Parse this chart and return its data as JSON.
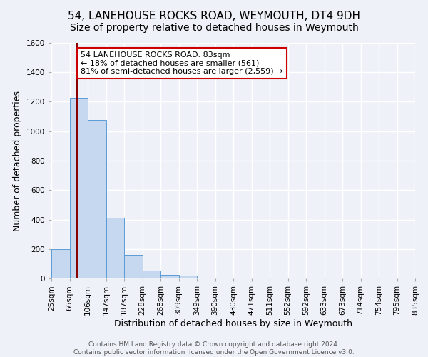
{
  "title": "54, LANEHOUSE ROCKS ROAD, WEYMOUTH, DT4 9DH",
  "subtitle": "Size of property relative to detached houses in Weymouth",
  "xlabel": "Distribution of detached houses by size in Weymouth",
  "ylabel": "Number of detached properties",
  "bin_labels": [
    "25sqm",
    "66sqm",
    "106sqm",
    "147sqm",
    "187sqm",
    "228sqm",
    "268sqm",
    "309sqm",
    "349sqm",
    "390sqm",
    "430sqm",
    "471sqm",
    "511sqm",
    "552sqm",
    "592sqm",
    "633sqm",
    "673sqm",
    "714sqm",
    "754sqm",
    "795sqm",
    "835sqm"
  ],
  "bar_values": [
    200,
    1225,
    1075,
    410,
    160,
    55,
    25,
    20,
    0,
    0,
    0,
    0,
    0,
    0,
    0,
    0,
    0,
    0,
    0,
    0
  ],
  "bar_color": "#c5d8f0",
  "bar_edge_color": "#5b9bd5",
  "property_size": 83,
  "vline_color": "#8b0000",
  "vline_x": 1.425,
  "annotation_text": "54 LANEHOUSE ROCKS ROAD: 83sqm\n← 18% of detached houses are smaller (561)\n81% of semi-detached houses are larger (2,559) →",
  "annotation_box_color": "#ffffff",
  "annotation_box_edge": "#cc0000",
  "ylim": [
    0,
    1600
  ],
  "yticks": [
    0,
    200,
    400,
    600,
    800,
    1000,
    1200,
    1400,
    1600
  ],
  "footer1": "Contains HM Land Registry data © Crown copyright and database right 2024.",
  "footer2": "Contains public sector information licensed under the Open Government Licence v3.0.",
  "background_color": "#eef2f8",
  "grid_color": "#ffffff",
  "title_fontsize": 11,
  "axis_label_fontsize": 9,
  "tick_fontsize": 7.5,
  "annotation_fontsize": 8,
  "footer_fontsize": 6.5
}
